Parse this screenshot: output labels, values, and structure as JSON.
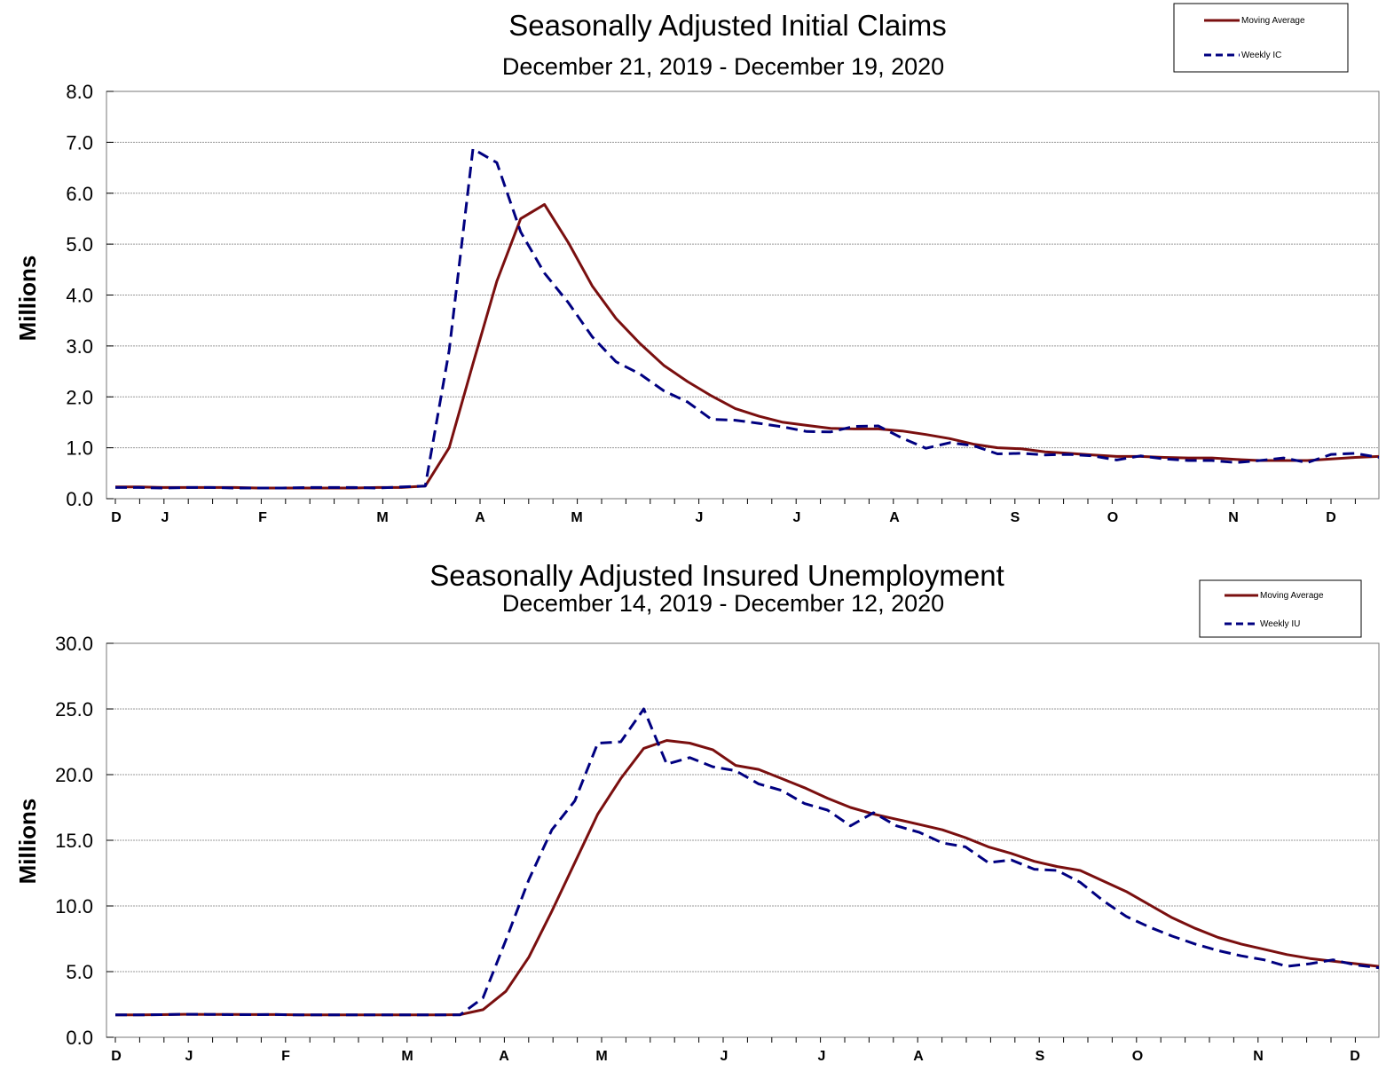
{
  "colors": {
    "moving_average": "#7a0f0f",
    "weekly": "#000080"
  },
  "chart_data": [
    {
      "type": "line",
      "title": "Seasonally Adjusted Initial Claims",
      "subtitle": "December 21, 2019 - December 19, 2020",
      "ylabel": "Millions",
      "ylim": [
        0,
        8
      ],
      "yticks": [
        "0.0",
        "1.0",
        "2.0",
        "3.0",
        "4.0",
        "5.0",
        "6.0",
        "7.0",
        "8.0"
      ],
      "xticks": [
        "D",
        "J",
        "F",
        "M",
        "A",
        "M",
        "J",
        "J",
        "A",
        "S",
        "O",
        "N",
        "D"
      ],
      "grid": true,
      "legend_position": "top-right",
      "series": [
        {
          "name": "Moving Average",
          "style": "solid",
          "values": [
            0.23,
            0.23,
            0.22,
            0.22,
            0.22,
            0.22,
            0.21,
            0.21,
            0.21,
            0.21,
            0.21,
            0.22,
            0.22,
            0.25,
            1.0,
            2.65,
            4.27,
            5.5,
            5.78,
            5.03,
            4.18,
            3.54,
            3.05,
            2.62,
            2.3,
            2.02,
            1.77,
            1.62,
            1.5,
            1.44,
            1.38,
            1.37,
            1.37,
            1.33,
            1.26,
            1.18,
            1.07,
            1.0,
            0.98,
            0.92,
            0.89,
            0.86,
            0.83,
            0.83,
            0.81,
            0.8,
            0.8,
            0.77,
            0.75,
            0.75,
            0.75,
            0.78,
            0.81,
            0.83
          ]
        },
        {
          "name": "Weekly IC",
          "style": "dashed",
          "values": [
            0.22,
            0.22,
            0.21,
            0.22,
            0.22,
            0.21,
            0.21,
            0.21,
            0.22,
            0.22,
            0.22,
            0.21,
            0.23,
            0.25,
            2.91,
            6.87,
            6.6,
            5.24,
            4.43,
            3.85,
            3.18,
            2.69,
            2.45,
            2.12,
            1.9,
            1.56,
            1.54,
            1.48,
            1.41,
            1.32,
            1.31,
            1.42,
            1.43,
            1.19,
            0.99,
            1.1,
            1.04,
            0.88,
            0.89,
            0.86,
            0.87,
            0.84,
            0.76,
            0.84,
            0.78,
            0.75,
            0.75,
            0.71,
            0.75,
            0.8,
            0.71,
            0.87,
            0.89,
            0.81
          ]
        }
      ]
    },
    {
      "type": "line",
      "title": "Seasonally Adjusted Insured Unemployment",
      "subtitle": "December 14, 2019 - December 12, 2020",
      "ylabel": "Millions",
      "ylim": [
        0,
        30
      ],
      "yticks": [
        "0.0",
        "5.0",
        "10.0",
        "15.0",
        "20.0",
        "25.0",
        "30.0"
      ],
      "xticks": [
        "D",
        "J",
        "F",
        "M",
        "A",
        "M",
        "J",
        "J",
        "A",
        "S",
        "O",
        "N",
        "D"
      ],
      "grid": true,
      "legend_position": "top-right",
      "series": [
        {
          "name": "Moving Average",
          "style": "solid",
          "values": [
            1.7,
            1.7,
            1.72,
            1.75,
            1.74,
            1.74,
            1.73,
            1.73,
            1.7,
            1.7,
            1.7,
            1.7,
            1.7,
            1.7,
            1.7,
            1.72,
            2.1,
            3.5,
            6.1,
            9.6,
            13.3,
            17.0,
            19.7,
            22.0,
            22.6,
            22.4,
            21.9,
            20.7,
            20.4,
            19.7,
            19.0,
            18.2,
            17.5,
            17.0,
            16.6,
            16.2,
            15.8,
            15.2,
            14.5,
            14.0,
            13.4,
            13.0,
            12.7,
            11.9,
            11.1,
            10.1,
            9.1,
            8.3,
            7.6,
            7.1,
            6.7,
            6.3,
            6.0,
            5.8,
            5.6,
            5.4
          ]
        },
        {
          "name": "Weekly IU",
          "style": "dashed",
          "values": [
            1.7,
            1.7,
            1.72,
            1.75,
            1.74,
            1.72,
            1.72,
            1.73,
            1.7,
            1.7,
            1.7,
            1.7,
            1.7,
            1.7,
            1.7,
            1.7,
            3.0,
            7.4,
            12.0,
            15.8,
            18.0,
            22.4,
            22.5,
            25.0,
            20.8,
            21.3,
            20.6,
            20.3,
            19.3,
            18.8,
            17.8,
            17.3,
            16.1,
            17.1,
            16.1,
            15.6,
            14.8,
            14.5,
            13.3,
            13.5,
            12.8,
            12.7,
            11.8,
            10.4,
            9.2,
            8.4,
            7.7,
            7.1,
            6.6,
            6.2,
            5.9,
            5.4,
            5.6,
            5.9,
            5.5,
            5.3
          ]
        }
      ]
    }
  ]
}
